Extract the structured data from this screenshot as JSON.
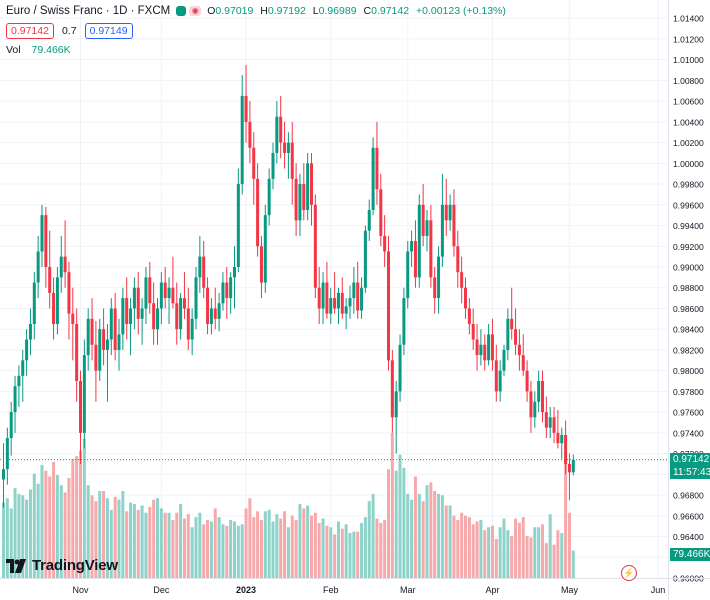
{
  "header": {
    "symbol": "Euro / Swiss Franc · 1D · FXCM",
    "market_dot_color": "#089981",
    "ohlc": {
      "o_label": "O",
      "o": "0.97019",
      "h_label": "H",
      "h": "0.97192",
      "l_label": "L",
      "l": "0.96989",
      "c_label": "C",
      "c": "0.97142",
      "change": "+0.00123 (+0.13%)"
    }
  },
  "quote": {
    "bid": "0.97142",
    "spread": "0.7",
    "ask": "0.97149"
  },
  "volume_legend": {
    "label": "Vol",
    "value": "79.466K"
  },
  "price_tag": {
    "price": "0.97142",
    "countdown": "11:57:43"
  },
  "volume_tag": "79.466K",
  "logo": {
    "name": "TradingView",
    "icon": "tradingview-logo-icon"
  },
  "colors": {
    "up": "#089981",
    "down": "#f23645",
    "vol_up": "#8dd3c9",
    "vol_down": "#f7a8ab",
    "grid": "#f0f3fa"
  },
  "chart_data": {
    "type": "candlestick",
    "title": "Euro / Swiss Franc · 1D · FXCM",
    "y_ticks": [
      "1.01400",
      "1.01200",
      "1.01000",
      "1.00800",
      "1.00600",
      "1.00400",
      "1.00200",
      "1.00000",
      "0.99800",
      "0.99600",
      "0.99400",
      "0.99200",
      "0.99000",
      "0.98800",
      "0.98600",
      "0.98400",
      "0.98200",
      "0.98000",
      "0.97800",
      "0.97600",
      "0.97400",
      "0.97200",
      "0.97000",
      "0.96800",
      "0.96600",
      "0.96400",
      "0.96200",
      "0.96000"
    ],
    "ylim": [
      0.96,
      1.0145
    ],
    "x_ticks": [
      {
        "label": "Nov",
        "index": 20
      },
      {
        "label": "Dec",
        "index": 41
      },
      {
        "label": "2023",
        "index": 63
      },
      {
        "label": "Feb",
        "index": 85
      },
      {
        "label": "Mar",
        "index": 105
      },
      {
        "label": "Apr",
        "index": 127
      },
      {
        "label": "May",
        "index": 147
      },
      {
        "label": "Jun",
        "index": 170
      }
    ],
    "candles": [
      [
        0.9695,
        0.973,
        0.9668,
        0.9705
      ],
      [
        0.9705,
        0.9745,
        0.969,
        0.9735
      ],
      [
        0.9735,
        0.977,
        0.9718,
        0.976
      ],
      [
        0.976,
        0.9795,
        0.974,
        0.9785
      ],
      [
        0.9785,
        0.9805,
        0.9765,
        0.9795
      ],
      [
        0.9795,
        0.982,
        0.977,
        0.981
      ],
      [
        0.981,
        0.984,
        0.9795,
        0.983
      ],
      [
        0.983,
        0.986,
        0.9815,
        0.9845
      ],
      [
        0.9845,
        0.9895,
        0.983,
        0.9885
      ],
      [
        0.9885,
        0.993,
        0.987,
        0.9915
      ],
      [
        0.9915,
        0.996,
        0.99,
        0.995
      ],
      [
        0.995,
        0.9958,
        0.988,
        0.99
      ],
      [
        0.99,
        0.9935,
        0.986,
        0.9875
      ],
      [
        0.9875,
        0.989,
        0.983,
        0.9845
      ],
      [
        0.9845,
        0.99,
        0.9835,
        0.989
      ],
      [
        0.989,
        0.993,
        0.9875,
        0.991
      ],
      [
        0.991,
        0.9945,
        0.988,
        0.9895
      ],
      [
        0.9895,
        0.9905,
        0.983,
        0.9855
      ],
      [
        0.9855,
        0.988,
        0.981,
        0.9845
      ],
      [
        0.9845,
        0.986,
        0.977,
        0.979
      ],
      [
        0.979,
        0.98,
        0.971,
        0.974
      ],
      [
        0.974,
        0.983,
        0.9725,
        0.9815
      ],
      [
        0.9815,
        0.986,
        0.98,
        0.985
      ],
      [
        0.985,
        0.987,
        0.981,
        0.9825
      ],
      [
        0.9825,
        0.9848,
        0.977,
        0.98
      ],
      [
        0.98,
        0.985,
        0.979,
        0.984
      ],
      [
        0.984,
        0.986,
        0.9805,
        0.982
      ],
      [
        0.982,
        0.9845,
        0.977,
        0.983
      ],
      [
        0.983,
        0.987,
        0.9815,
        0.986
      ],
      [
        0.986,
        0.9875,
        0.981,
        0.982
      ],
      [
        0.982,
        0.985,
        0.98,
        0.9835
      ],
      [
        0.9835,
        0.988,
        0.982,
        0.987
      ],
      [
        0.987,
        0.989,
        0.983,
        0.9845
      ],
      [
        0.9845,
        0.987,
        0.9815,
        0.986
      ],
      [
        0.986,
        0.989,
        0.984,
        0.988
      ],
      [
        0.988,
        0.9895,
        0.9835,
        0.985
      ],
      [
        0.985,
        0.987,
        0.9825,
        0.986
      ],
      [
        0.986,
        0.99,
        0.9845,
        0.989
      ],
      [
        0.989,
        0.9905,
        0.9855,
        0.9865
      ],
      [
        0.9865,
        0.9885,
        0.9825,
        0.984
      ],
      [
        0.984,
        0.987,
        0.9825,
        0.986
      ],
      [
        0.986,
        0.9895,
        0.9845,
        0.9885
      ],
      [
        0.9885,
        0.99,
        0.986,
        0.987
      ],
      [
        0.987,
        0.989,
        0.9845,
        0.988
      ],
      [
        0.988,
        0.991,
        0.986,
        0.9865
      ],
      [
        0.9865,
        0.9885,
        0.9825,
        0.984
      ],
      [
        0.984,
        0.9875,
        0.983,
        0.987
      ],
      [
        0.987,
        0.9895,
        0.985,
        0.986
      ],
      [
        0.986,
        0.988,
        0.982,
        0.983
      ],
      [
        0.983,
        0.986,
        0.9815,
        0.985
      ],
      [
        0.985,
        0.99,
        0.984,
        0.989
      ],
      [
        0.989,
        0.993,
        0.9875,
        0.991
      ],
      [
        0.991,
        0.9925,
        0.987,
        0.988
      ],
      [
        0.988,
        0.989,
        0.9835,
        0.9845
      ],
      [
        0.9845,
        0.987,
        0.9835,
        0.986
      ],
      [
        0.986,
        0.988,
        0.984,
        0.985
      ],
      [
        0.985,
        0.9875,
        0.9838,
        0.9865
      ],
      [
        0.9865,
        0.9895,
        0.9858,
        0.9885
      ],
      [
        0.9885,
        0.99,
        0.985,
        0.987
      ],
      [
        0.987,
        0.9895,
        0.9855,
        0.989
      ],
      [
        0.989,
        0.992,
        0.986,
        0.99
      ],
      [
        0.99,
        0.9995,
        0.9895,
        0.998
      ],
      [
        0.998,
        1.0085,
        0.997,
        1.0065
      ],
      [
        1.0065,
        1.0095,
        1.002,
        1.004
      ],
      [
        1.004,
        1.006,
        1.0,
        1.0015
      ],
      [
        1.0015,
        1.003,
        0.996,
        0.9985
      ],
      [
        0.9985,
        1.0,
        0.991,
        0.992
      ],
      [
        0.992,
        0.993,
        0.987,
        0.9885
      ],
      [
        0.9885,
        0.996,
        0.9875,
        0.995
      ],
      [
        0.995,
        0.9995,
        0.994,
        0.9985
      ],
      [
        0.9985,
        1.002,
        0.9975,
        1.001
      ],
      [
        1.001,
        1.006,
        1.0,
        1.0045
      ],
      [
        1.0045,
        1.0065,
        1.0005,
        1.002
      ],
      [
        1.002,
        1.004,
        0.9995,
        1.001
      ],
      [
        1.001,
        1.003,
        0.9985,
        1.002
      ],
      [
        1.002,
        1.004,
        0.996,
        0.9985
      ],
      [
        0.9985,
        1.0,
        0.993,
        0.9945
      ],
      [
        0.9945,
        0.999,
        0.993,
        0.998
      ],
      [
        0.998,
        1.0,
        0.9945,
        0.9955
      ],
      [
        0.9955,
        1.001,
        0.9945,
        1.0
      ],
      [
        1.0,
        1.001,
        0.994,
        0.996
      ],
      [
        0.996,
        0.997,
        0.987,
        0.988
      ],
      [
        0.988,
        0.99,
        0.9845,
        0.986
      ],
      [
        0.986,
        0.9895,
        0.9845,
        0.9885
      ],
      [
        0.9885,
        0.9905,
        0.985,
        0.9855
      ],
      [
        0.9855,
        0.988,
        0.9845,
        0.987
      ],
      [
        0.987,
        0.9895,
        0.9855,
        0.986
      ],
      [
        0.986,
        0.988,
        0.9845,
        0.9875
      ],
      [
        0.9875,
        0.989,
        0.985,
        0.9855
      ],
      [
        0.9855,
        0.987,
        0.984,
        0.9862
      ],
      [
        0.9862,
        0.9882,
        0.985,
        0.987
      ],
      [
        0.987,
        0.99,
        0.9855,
        0.9885
      ],
      [
        0.9885,
        0.9905,
        0.985,
        0.9858
      ],
      [
        0.9858,
        0.989,
        0.985,
        0.988
      ],
      [
        0.988,
        0.994,
        0.9875,
        0.9935
      ],
      [
        0.9935,
        0.9965,
        0.9925,
        0.9955
      ],
      [
        0.9955,
        1.0025,
        0.995,
        1.0015
      ],
      [
        1.0015,
        1.004,
        0.996,
        0.9975
      ],
      [
        0.9975,
        0.999,
        0.992,
        0.993
      ],
      [
        0.993,
        0.995,
        0.99,
        0.9915
      ],
      [
        0.9915,
        0.993,
        0.98,
        0.981
      ],
      [
        0.981,
        0.982,
        0.974,
        0.9755
      ],
      [
        0.9755,
        0.979,
        0.972,
        0.978
      ],
      [
        0.978,
        0.9835,
        0.977,
        0.9825
      ],
      [
        0.9825,
        0.988,
        0.9815,
        0.987
      ],
      [
        0.987,
        0.9925,
        0.986,
        0.9915
      ],
      [
        0.9915,
        0.9935,
        0.99,
        0.9925
      ],
      [
        0.9925,
        0.9945,
        0.988,
        0.989
      ],
      [
        0.989,
        0.997,
        0.988,
        0.996
      ],
      [
        0.996,
        0.998,
        0.992,
        0.993
      ],
      [
        0.993,
        0.9955,
        0.9915,
        0.9945
      ],
      [
        0.9945,
        0.996,
        0.988,
        0.989
      ],
      [
        0.989,
        0.99,
        0.9855,
        0.987
      ],
      [
        0.987,
        0.992,
        0.9855,
        0.991
      ],
      [
        0.991,
        0.999,
        0.99,
        0.996
      ],
      [
        0.996,
        0.9985,
        0.993,
        0.9945
      ],
      [
        0.9945,
        0.997,
        0.9935,
        0.996
      ],
      [
        0.996,
        0.9975,
        0.991,
        0.992
      ],
      [
        0.992,
        0.9935,
        0.988,
        0.9895
      ],
      [
        0.9895,
        0.991,
        0.9865,
        0.988
      ],
      [
        0.988,
        0.989,
        0.985,
        0.986
      ],
      [
        0.986,
        0.987,
        0.9835,
        0.9845
      ],
      [
        0.9845,
        0.986,
        0.982,
        0.983
      ],
      [
        0.983,
        0.9845,
        0.98,
        0.9815
      ],
      [
        0.9815,
        0.984,
        0.9805,
        0.9825
      ],
      [
        0.9825,
        0.9835,
        0.98,
        0.981
      ],
      [
        0.981,
        0.9845,
        0.9805,
        0.9835
      ],
      [
        0.9835,
        0.985,
        0.98,
        0.981
      ],
      [
        0.981,
        0.9825,
        0.977,
        0.978
      ],
      [
        0.978,
        0.981,
        0.977,
        0.98
      ],
      [
        0.98,
        0.9825,
        0.9795,
        0.982
      ],
      [
        0.982,
        0.986,
        0.981,
        0.985
      ],
      [
        0.985,
        0.988,
        0.983,
        0.984
      ],
      [
        0.984,
        0.986,
        0.9815,
        0.9825
      ],
      [
        0.9825,
        0.984,
        0.98,
        0.9815
      ],
      [
        0.9815,
        0.9835,
        0.9795,
        0.98
      ],
      [
        0.98,
        0.981,
        0.977,
        0.978
      ],
      [
        0.978,
        0.979,
        0.974,
        0.9755
      ],
      [
        0.9755,
        0.978,
        0.9745,
        0.977
      ],
      [
        0.977,
        0.98,
        0.976,
        0.979
      ],
      [
        0.979,
        0.98,
        0.975,
        0.976
      ],
      [
        0.976,
        0.9775,
        0.9735,
        0.9745
      ],
      [
        0.9745,
        0.9765,
        0.9735,
        0.9755
      ],
      [
        0.9755,
        0.9765,
        0.973,
        0.974
      ],
      [
        0.974,
        0.9762,
        0.9725,
        0.973
      ],
      [
        0.973,
        0.9745,
        0.9715,
        0.9738
      ],
      [
        0.9738,
        0.9752,
        0.97,
        0.971
      ],
      [
        0.971,
        0.972,
        0.9675,
        0.9702
      ],
      [
        0.9702,
        0.9719,
        0.9699,
        0.9714
      ]
    ],
    "volumes": [
      52,
      55,
      48,
      62,
      58,
      57,
      54,
      61,
      72,
      65,
      78,
      74,
      70,
      80,
      71,
      64,
      59,
      69,
      82,
      84,
      88,
      96,
      64,
      57,
      53,
      60,
      60,
      55,
      47,
      56,
      54,
      60,
      46,
      52,
      51,
      47,
      50,
      45,
      49,
      54,
      55,
      48,
      45,
      45,
      40,
      45,
      51,
      41,
      44,
      35,
      42,
      45,
      37,
      40,
      39,
      48,
      42,
      37,
      36,
      40,
      39,
      36,
      37,
      48,
      55,
      42,
      46,
      40,
      46,
      47,
      39,
      44,
      41,
      46,
      35,
      43,
      40,
      51,
      48,
      50,
      43,
      45,
      38,
      41,
      36,
      35,
      30,
      39,
      34,
      37,
      31,
      32,
      32,
      38,
      42,
      53,
      58,
      41,
      38,
      40,
      75,
      100,
      74,
      85,
      76,
      58,
      54,
      70,
      58,
      53,
      64,
      66,
      60,
      58,
      57,
      50,
      50,
      43,
      40,
      45,
      43,
      42,
      37,
      39,
      40,
      33,
      35,
      36,
      27,
      35,
      41,
      33,
      29,
      41,
      38,
      42,
      29,
      28,
      35,
      35,
      37,
      24,
      44,
      23,
      33,
      31,
      80,
      45,
      19
    ]
  }
}
